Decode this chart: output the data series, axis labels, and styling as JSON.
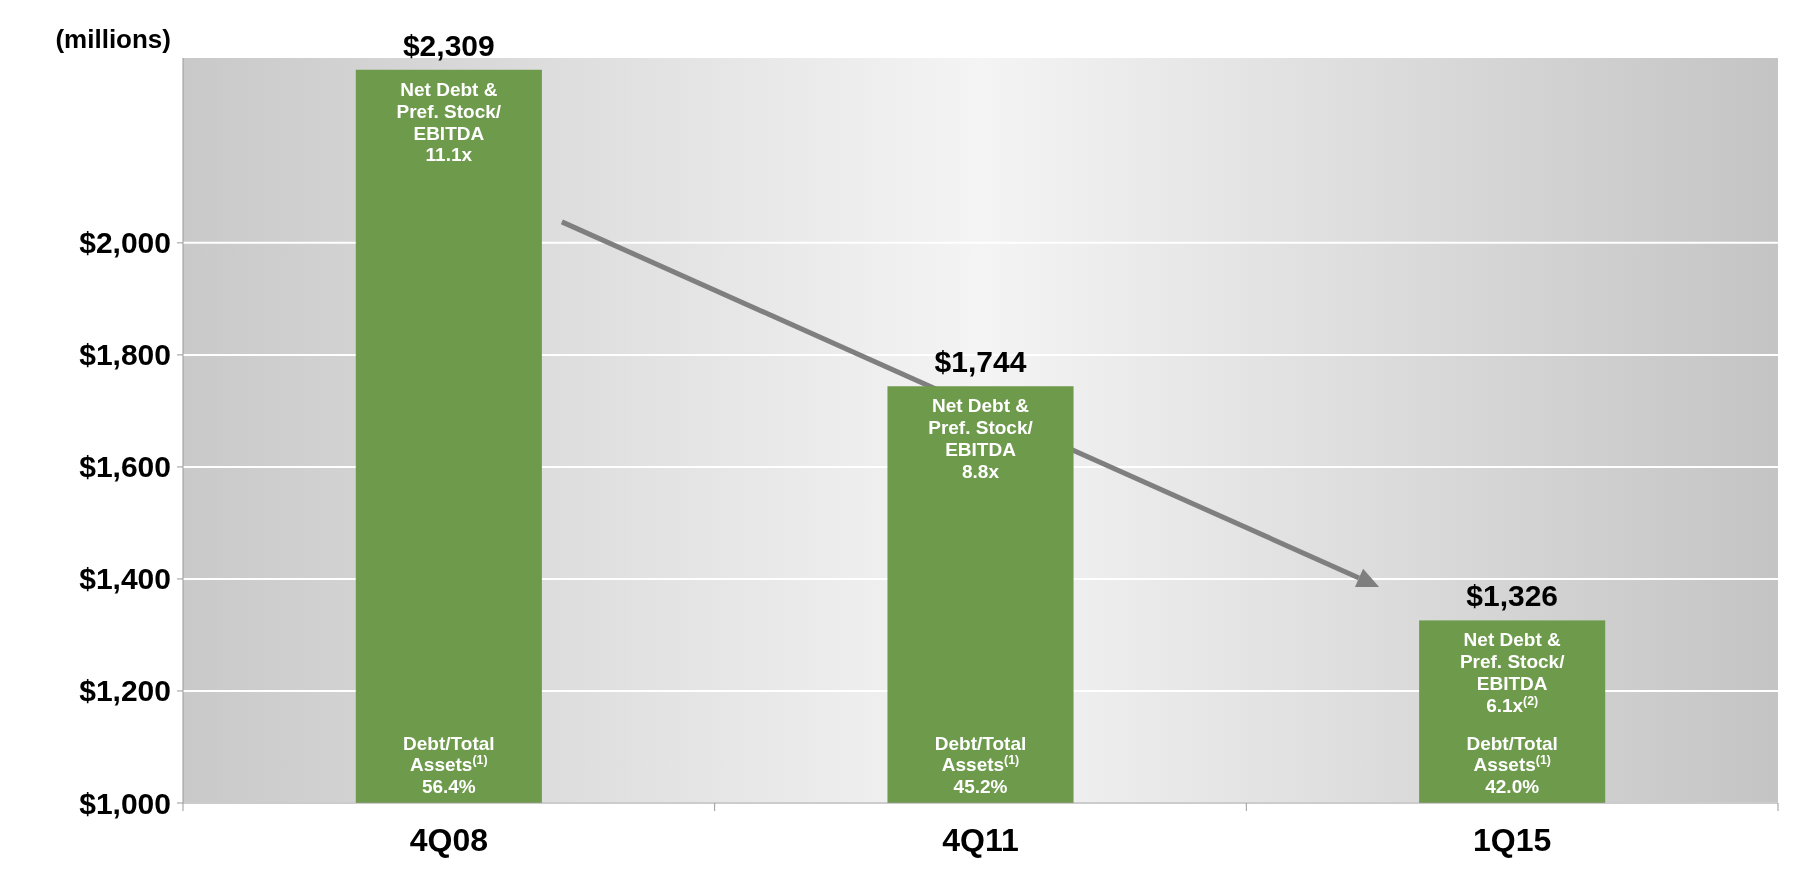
{
  "chart_data": {
    "type": "bar",
    "ylabel": "(millions)",
    "categories": [
      "4Q08",
      "4Q11",
      "1Q15"
    ],
    "values": [
      2309,
      1744,
      1326
    ],
    "color": "#6e9a4c",
    "value_labels": [
      "$2,309",
      "$1,744",
      "$1,326"
    ],
    "ylim": [
      1000,
      2330
    ],
    "yticks": [
      {
        "value": 1000,
        "label": "$1,000"
      },
      {
        "value": 1200,
        "label": "$1,200"
      },
      {
        "value": 1400,
        "label": "$1,400"
      },
      {
        "value": 1600,
        "label": "$1,600"
      },
      {
        "value": 1800,
        "label": "$1,800"
      },
      {
        "value": 2000,
        "label": "$2,000"
      }
    ],
    "grid": "y",
    "annotations": [
      "Net Debt &\nPref. Stock/\nEBITDA\n11.1x",
      "Net Debt &\nPref. Stock/\nEBITDA\n8.8x",
      "Net Debt &\nPref. Stock/\nEBITDA\n6.1x$^{(2)}$",
      "Debt/Total\nAssets$^{(1)}$\n56.4%",
      "Debt/Total\nAssets$^{(1)}$\n45.2%",
      "Debt/Total\nAssets$^{(1)}$\n42.0%"
    ]
  }
}
